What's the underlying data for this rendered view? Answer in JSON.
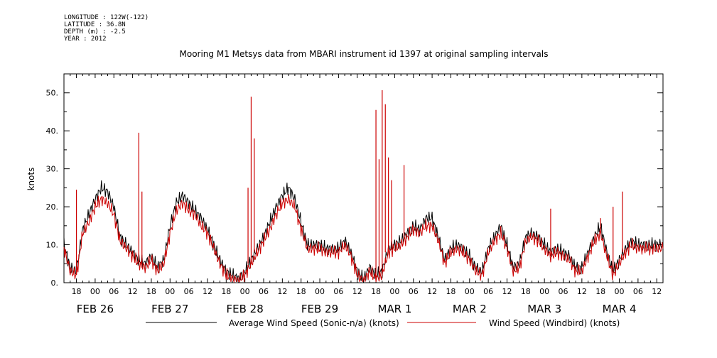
{
  "meta": {
    "longitude": "LONGITUDE : 122W(-122)",
    "latitude": "LATITUDE : 36.8N",
    "depth": "DEPTH (m) : -2.5",
    "year": "YEAR : 2012"
  },
  "chart_data": {
    "type": "line",
    "title": "Mooring M1 Metsys data from MBARI instrument id 1397 at original sampling intervals",
    "xlabel": "",
    "ylabel": "knots",
    "x_unit": "hours since 2012-02-26 00:00",
    "xlim": [
      14,
      206
    ],
    "ylim": [
      0,
      55
    ],
    "yticks": [
      0,
      10,
      20,
      30,
      40,
      50
    ],
    "ytick_labels": [
      "0.",
      "10.",
      "20.",
      "30.",
      "40.",
      "50."
    ],
    "xticks": [
      18,
      24,
      30,
      36,
      42,
      48,
      54,
      60,
      66,
      72,
      78,
      84,
      90,
      96,
      102,
      108,
      114,
      120,
      126,
      132,
      138,
      144,
      150,
      156,
      162,
      168,
      174,
      180,
      186,
      192,
      198,
      204
    ],
    "xtick_labels": [
      "18",
      "00",
      "06",
      "12",
      "18",
      "00",
      "06",
      "12",
      "18",
      "00",
      "06",
      "12",
      "18",
      "00",
      "06",
      "12",
      "18",
      "00",
      "06",
      "12",
      "18",
      "00",
      "06",
      "12",
      "18",
      "00",
      "06",
      "12",
      "18",
      "00",
      "06",
      "12"
    ],
    "date_labels": [
      {
        "x": 24,
        "label": "FEB 26"
      },
      {
        "x": 48,
        "label": "FEB 27"
      },
      {
        "x": 72,
        "label": "FEB 28"
      },
      {
        "x": 96,
        "label": "FEB 29"
      },
      {
        "x": 120,
        "label": "MAR  1"
      },
      {
        "x": 144,
        "label": "MAR  2"
      },
      {
        "x": 168,
        "label": "MAR  3"
      },
      {
        "x": 192,
        "label": "MAR  4"
      }
    ],
    "legend_position": "bottom",
    "series": [
      {
        "name": "Average Wind Speed (Sonic-n/a) (knots)",
        "color": "#000000",
        "x": [
          14,
          16,
          18,
          20,
          22,
          24,
          26,
          28,
          30,
          32,
          34,
          36,
          38,
          40,
          42,
          44,
          46,
          48,
          50,
          52,
          54,
          56,
          58,
          60,
          62,
          64,
          66,
          68,
          70,
          72,
          74,
          76,
          78,
          80,
          82,
          84,
          86,
          88,
          90,
          92,
          94,
          96,
          98,
          100,
          102,
          104,
          106,
          108,
          110,
          112,
          114,
          116,
          118,
          120,
          122,
          124,
          126,
          128,
          130,
          132,
          134,
          136,
          138,
          140,
          142,
          144,
          146,
          148,
          150,
          152,
          154,
          156,
          158,
          160,
          162,
          164,
          166,
          168,
          170,
          172,
          174,
          176,
          178,
          180,
          182,
          184,
          186,
          188,
          190,
          192,
          194,
          196,
          198,
          200,
          202,
          204,
          206
        ],
        "y": [
          10,
          4,
          3,
          14,
          18,
          22,
          25,
          24,
          20,
          12,
          10,
          8,
          6,
          5,
          7,
          4,
          6,
          15,
          21,
          23,
          21,
          19,
          17,
          14,
          10,
          6,
          3,
          2,
          1,
          3,
          6,
          9,
          12,
          16,
          20,
          23,
          25,
          22,
          16,
          10,
          10,
          10,
          9,
          9,
          9,
          11,
          8,
          3,
          1,
          4,
          2,
          3,
          9,
          10,
          11,
          13,
          15,
          14,
          17,
          17,
          12,
          6,
          9,
          10,
          9,
          7,
          4,
          3,
          9,
          12,
          15,
          10,
          4,
          5,
          12,
          13,
          12,
          10,
          8,
          9,
          8,
          7,
          4,
          4,
          8,
          12,
          15,
          8,
          3,
          6,
          9,
          11,
          10,
          10,
          10,
          10,
          10
        ]
      },
      {
        "name": "Wind Speed (Windbird) (knots)",
        "color": "#cc0000",
        "x": [
          14,
          16,
          18,
          20,
          22,
          24,
          26,
          28,
          30,
          32,
          34,
          36,
          38,
          40,
          42,
          44,
          46,
          48,
          50,
          52,
          54,
          56,
          58,
          60,
          62,
          64,
          66,
          68,
          70,
          72,
          74,
          76,
          78,
          80,
          82,
          84,
          86,
          88,
          90,
          92,
          94,
          96,
          98,
          100,
          102,
          104,
          106,
          108,
          110,
          112,
          114,
          116,
          118,
          120,
          122,
          124,
          126,
          128,
          130,
          132,
          134,
          136,
          138,
          140,
          142,
          144,
          146,
          148,
          150,
          152,
          154,
          156,
          158,
          160,
          162,
          164,
          166,
          168,
          170,
          172,
          174,
          176,
          178,
          180,
          182,
          184,
          186,
          188,
          190,
          192,
          194,
          196,
          198,
          200,
          202,
          204,
          206
        ],
        "y": [
          9,
          3,
          2,
          13,
          16,
          20,
          22,
          21,
          18,
          11,
          9,
          7,
          5,
          4,
          6,
          3,
          5,
          13,
          19,
          21,
          19,
          18,
          15,
          13,
          9,
          5,
          2,
          1,
          0.5,
          2,
          5,
          8,
          11,
          14,
          18,
          21,
          22,
          20,
          14,
          9,
          9,
          9,
          8,
          8,
          8,
          10,
          7,
          2,
          0.5,
          3,
          1,
          2,
          8,
          9,
          10,
          12,
          14,
          13,
          15,
          15,
          11,
          5,
          8,
          9,
          8,
          6,
          3,
          2,
          8,
          11,
          13,
          9,
          3,
          4,
          11,
          12,
          11,
          9,
          7,
          8,
          7,
          6,
          3,
          3,
          7,
          11,
          13,
          7,
          2,
          5,
          8,
          10,
          9,
          9,
          9,
          9,
          9
        ],
        "spikes": [
          {
            "x": 18,
            "y": 24.5
          },
          {
            "x": 38,
            "y": 39.5
          },
          {
            "x": 39,
            "y": 24
          },
          {
            "x": 74,
            "y": 49
          },
          {
            "x": 75,
            "y": 38
          },
          {
            "x": 73,
            "y": 25
          },
          {
            "x": 114,
            "y": 45.5
          },
          {
            "x": 115,
            "y": 32.5
          },
          {
            "x": 116,
            "y": 50.7
          },
          {
            "x": 117,
            "y": 47
          },
          {
            "x": 118,
            "y": 33
          },
          {
            "x": 119,
            "y": 27
          },
          {
            "x": 123,
            "y": 31
          },
          {
            "x": 170,
            "y": 19.5
          },
          {
            "x": 186,
            "y": 17
          },
          {
            "x": 190,
            "y": 20
          },
          {
            "x": 193,
            "y": 24
          }
        ]
      }
    ]
  }
}
